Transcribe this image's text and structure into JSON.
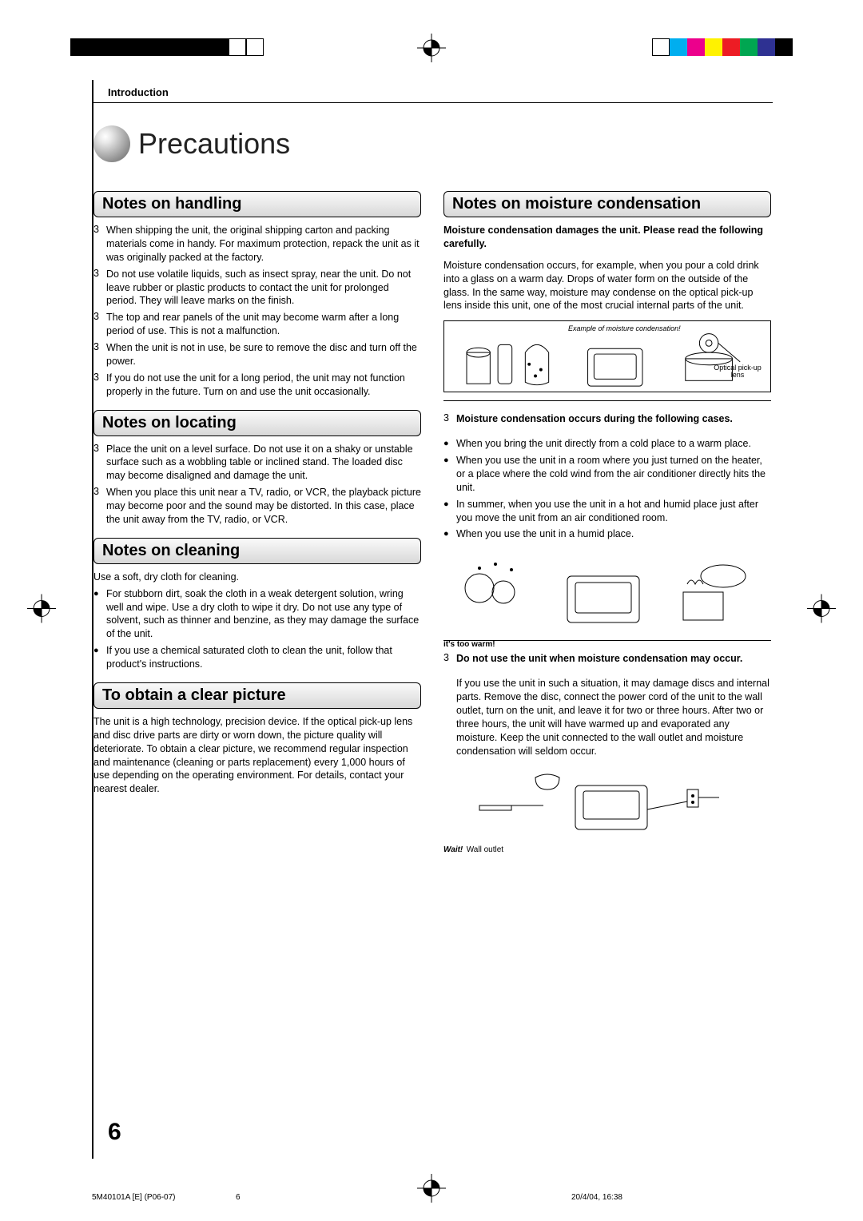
{
  "regmarks": {
    "left_squares_filled": [
      true,
      true,
      true,
      true,
      true,
      true,
      true,
      true,
      true,
      false,
      false
    ],
    "color_swatches": [
      "#ffffff",
      "#00aeef",
      "#ec008c",
      "#fff200",
      "#ed1c24",
      "#00a651",
      "#2e3192",
      "#000000"
    ]
  },
  "header": {
    "section_label": "Introduction"
  },
  "title": "Precautions",
  "sections": {
    "handling": {
      "heading": "Notes on handling",
      "items": [
        "When shipping the unit, the original shipping carton and packing materials come in handy. For maximum protection, repack the unit as it was originally packed at the factory.",
        "Do not use volatile liquids, such as insect spray, near the unit. Do not leave rubber or plastic products to contact the unit for prolonged period. They will leave marks on the finish.",
        "The top and rear panels of the unit may become warm after a long period of use. This is not a malfunction.",
        "When the unit is not in use, be sure to remove the disc and turn off the power.",
        "If you do not use the unit for a long period, the unit may not function properly in the future. Turn on and use the unit occasionally."
      ]
    },
    "locating": {
      "heading": "Notes on locating",
      "items": [
        "Place the unit on a level surface. Do not use it on a shaky or unstable surface such as a wobbling table or inclined stand. The loaded disc may become disaligned and damage the unit.",
        "When you place this unit near a TV, radio, or VCR, the playback picture may become poor and the sound may be distorted. In this case, place the unit away from the TV, radio, or VCR."
      ]
    },
    "cleaning": {
      "heading": "Notes on cleaning",
      "intro": "Use a soft, dry cloth for cleaning.",
      "items": [
        "For stubborn dirt, soak the cloth in a weak detergent solution, wring well and wipe. Use a dry cloth to wipe it dry.\nDo not use any type of solvent, such as thinner and benzine, as they may damage the surface of the unit.",
        "If you use a chemical saturated cloth to clean the unit, follow that product's instructions."
      ]
    },
    "clear_picture": {
      "heading": "To obtain a clear picture",
      "body": "The unit is a high technology, precision device. If the optical pick-up lens and disc drive parts are dirty or worn down, the picture quality will deteriorate. To obtain a clear picture, we recommend regular inspection and maintenance (cleaning or parts replacement) every 1,000 hours of use depending on the operating environment. For details, contact your nearest dealer."
    },
    "moisture": {
      "heading": "Notes on moisture condensation",
      "lead_bold": "Moisture condensation damages the unit. Please read the following carefully.",
      "lead_body": "Moisture condensation occurs, for example, when you pour a cold drink into a glass on a warm day. Drops of water form on the outside of the glass. In the same way, moisture may condense on the optical pick-up lens inside this unit, one of the most crucial internal parts of the unit.",
      "illus1_caption": "Example of moisture condensation!",
      "illus1_label": "Optical pick-up lens",
      "cases_heading": "Moisture condensation occurs during the following cases.",
      "cases": [
        "When you bring the unit directly from a cold place to a warm place.",
        "When you use the unit in a room where you just turned on the heater, or a place where the cold wind from the air conditioner directly hits the unit.",
        "In summer, when you use the unit in a hot and humid place just after you move the unit from an air conditioned room.",
        "When you use the unit in a humid place."
      ],
      "illus2_bubble": "it's too warm!",
      "do_not_heading": "Do not use the unit when moisture condensation may occur.",
      "do_not_body": "If you use the unit in such a situation, it may damage discs and internal parts. Remove the disc, connect the power cord of the unit to the wall outlet, turn on the unit, and leave it for two or three hours. After two or three hours, the unit will have warmed up and evaporated any moisture. Keep the unit connected to the wall outlet and moisture condensation will seldom occur.",
      "illus3_bubble": "Wait!",
      "illus3_label": "Wall outlet"
    }
  },
  "page_number": "6",
  "footer": {
    "doc_id": "5M40101A [E] (P06-07)",
    "page": "6",
    "timestamp": "20/4/04, 16:38"
  }
}
